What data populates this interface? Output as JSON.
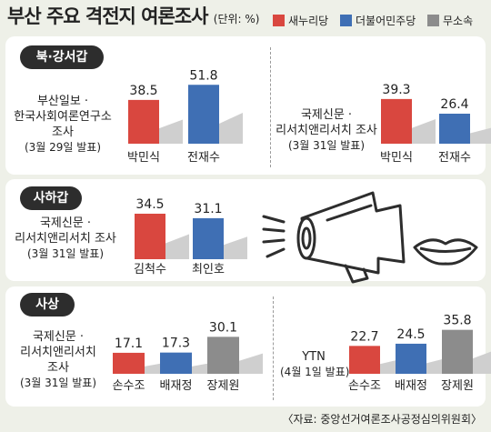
{
  "title": "부산 주요 격전지 여론조사",
  "unit": "(단위: %)",
  "legend": [
    {
      "label": "새누리당",
      "color": "#d9473f"
    },
    {
      "label": "더불어민주당",
      "color": "#3f6fb4"
    },
    {
      "label": "무소속",
      "color": "#8c8c8c"
    }
  ],
  "sections": [
    {
      "name": "북·강서갑"
    },
    {
      "name": "사하갑"
    },
    {
      "name": "사상"
    }
  ],
  "sources": [
    {
      "lines": [
        "부산일보 ·",
        "한국사회여론연구소",
        "조사"
      ],
      "date": "(3월 29일 발표)"
    },
    {
      "lines": [
        "국제신문 ·",
        "리서치앤리서치 조사"
      ],
      "date": "(3월 31일 발표)"
    },
    {
      "lines": [
        "국제신문 ·",
        "리서치앤리서치 조사"
      ],
      "date": "(3월 31일 발표)"
    },
    {
      "lines": [
        "국제신문 ·",
        "리서치앤리서치",
        "조사"
      ],
      "date": "(3월 31일 발표)"
    },
    {
      "lines": [
        "YTN"
      ],
      "date": "(4월 1일 발표)"
    }
  ],
  "footer": "〈자료: 중앙선거여론조사공정심의위원회〉",
  "chart_data": [
    {
      "type": "bar",
      "section": "북·강서갑",
      "source": "부산일보 · 한국사회여론연구소 조사",
      "categories": [
        "박민식",
        "전재수"
      ],
      "values": [
        38.5,
        51.8
      ],
      "colors": [
        "#d9473f",
        "#3f6fb4"
      ]
    },
    {
      "type": "bar",
      "section": "북·강서갑",
      "source": "국제신문 · 리서치앤리서치 조사",
      "categories": [
        "박민식",
        "전재수"
      ],
      "values": [
        39.3,
        26.4
      ],
      "colors": [
        "#d9473f",
        "#3f6fb4"
      ]
    },
    {
      "type": "bar",
      "section": "사하갑",
      "source": "국제신문 · 리서치앤리서치 조사",
      "categories": [
        "김척수",
        "최인호"
      ],
      "values": [
        34.5,
        31.1
      ],
      "colors": [
        "#d9473f",
        "#3f6fb4"
      ]
    },
    {
      "type": "bar",
      "section": "사상",
      "source": "국제신문 · 리서치앤리서치 조사",
      "categories": [
        "손수조",
        "배재정",
        "장제원"
      ],
      "values": [
        17.1,
        17.3,
        30.1
      ],
      "colors": [
        "#d9473f",
        "#3f6fb4",
        "#8c8c8c"
      ]
    },
    {
      "type": "bar",
      "section": "사상",
      "source": "YTN",
      "categories": [
        "손수조",
        "배재정",
        "장제원"
      ],
      "values": [
        22.7,
        24.5,
        35.8
      ],
      "colors": [
        "#d9473f",
        "#3f6fb4",
        "#8c8c8c"
      ]
    }
  ]
}
